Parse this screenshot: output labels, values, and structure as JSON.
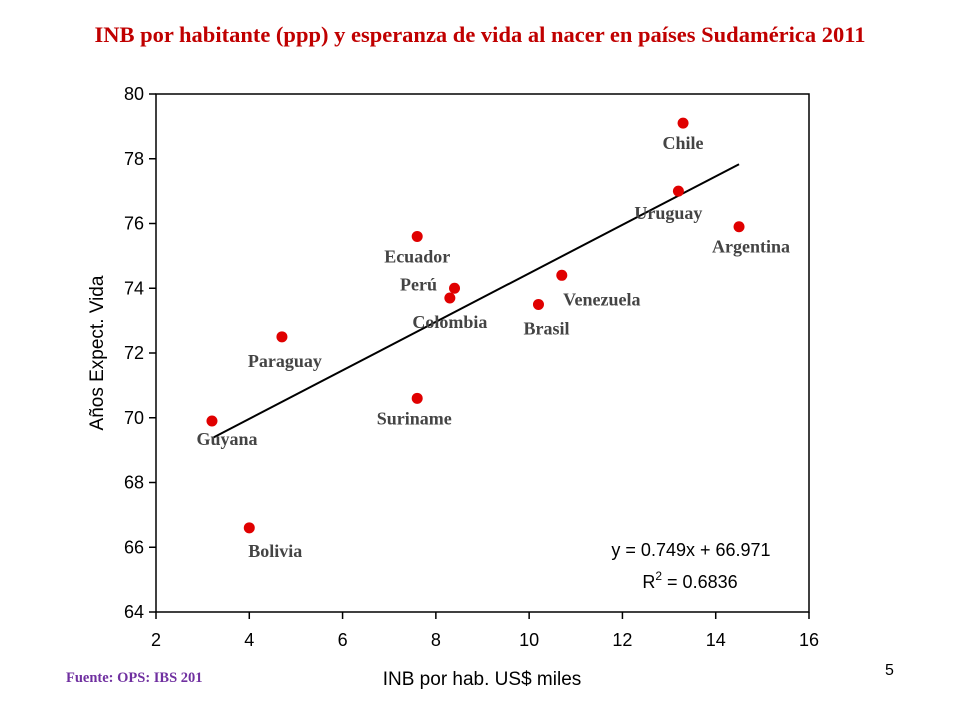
{
  "page_number": "5",
  "source": "Fuente: OPS: IBS 201",
  "chart_data": {
    "type": "scatter",
    "title": "INB por habitante (ppp) y esperanza de vida al nacer en países Sudamérica 2011",
    "xlabel": "INB por hab. US$ miles",
    "ylabel": "Años Expect. Vida",
    "xlim": [
      2,
      16
    ],
    "ylim": [
      64,
      80
    ],
    "xticks": [
      "2",
      "4",
      "6",
      "8",
      "10",
      "12",
      "14",
      "16"
    ],
    "yticks": [
      "64",
      "66",
      "68",
      "70",
      "72",
      "74",
      "76",
      "78",
      "80"
    ],
    "grid": false,
    "marker_color": "#e00000",
    "points": [
      {
        "label": "Chile",
        "x": 13.3,
        "y": 79.1
      },
      {
        "label": "Uruguay",
        "x": 13.2,
        "y": 77.0
      },
      {
        "label": "Argentina",
        "x": 14.5,
        "y": 75.9
      },
      {
        "label": "Ecuador",
        "x": 7.6,
        "y": 75.6
      },
      {
        "label": "Perú",
        "x": 8.4,
        "y": 74.0
      },
      {
        "label": "Colombia",
        "x": 8.3,
        "y": 73.7
      },
      {
        "label": "Venezuela",
        "x": 10.7,
        "y": 74.4
      },
      {
        "label": "Brasil",
        "x": 10.2,
        "y": 73.5
      },
      {
        "label": "Paraguay",
        "x": 4.7,
        "y": 72.5
      },
      {
        "label": "Suriname",
        "x": 7.6,
        "y": 70.6
      },
      {
        "label": "Guyana",
        "x": 3.2,
        "y": 69.9
      },
      {
        "label": "Bolivia",
        "x": 4.0,
        "y": 66.6
      }
    ],
    "trendline": {
      "slope": 0.749,
      "intercept": 66.971,
      "x_range": [
        3.2,
        14.5
      ],
      "equation": "y = 0.749x + 66.971",
      "r2_prefix": "R",
      "r2_superscript": "2",
      "r2_value": " = 0.6836"
    }
  }
}
